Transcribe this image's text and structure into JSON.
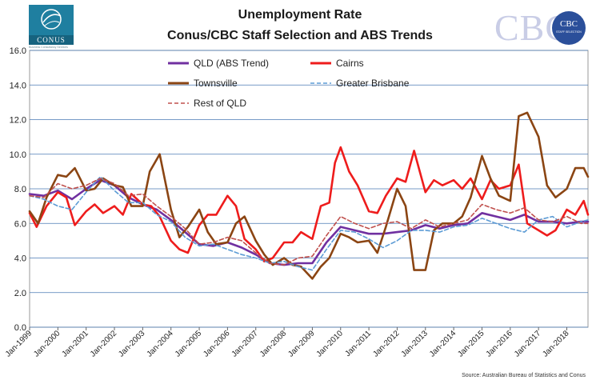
{
  "chart_data": {
    "type": "line",
    "title": "Unemployment Rate",
    "subtitle": "Conus/CBC Staff Selection and ABS Trends",
    "xlabel": "",
    "ylabel": "",
    "ylim": [
      0,
      16
    ],
    "yticks": [
      "0.0",
      "2.0",
      "4.0",
      "6.0",
      "8.0",
      "10.0",
      "12.0",
      "14.0",
      "16.0"
    ],
    "xticks": [
      "Jan-1999",
      "Jan-2000",
      "Jan-2001",
      "Jan-2002",
      "Jan-2003",
      "Jan-2004",
      "Jan-2005",
      "Jan-2006",
      "Jan-2007",
      "Jan-2008",
      "Jan-2009",
      "Jan-2010",
      "Jan-2011",
      "Jan-2012",
      "Jan-2013",
      "Jan-2014",
      "Jan-2015",
      "Jan-2016",
      "Jan-2017",
      "Jan-2018"
    ],
    "xlim": [
      1999.0,
      2018.75
    ],
    "grid": true,
    "legend_position": "top",
    "source": "Source: Australian Bureau of Statistics and Conus",
    "series": [
      {
        "name": "QLD (ABS Trend)",
        "color": "#7030a0",
        "dash": "solid",
        "x": [
          1999.0,
          1999.5,
          2000.0,
          2000.5,
          2001.0,
          2001.5,
          2002.0,
          2002.5,
          2003.0,
          2003.5,
          2004.0,
          2004.5,
          2005.0,
          2005.5,
          2006.0,
          2006.5,
          2007.0,
          2007.5,
          2008.0,
          2008.5,
          2009.0,
          2009.5,
          2010.0,
          2010.5,
          2011.0,
          2011.5,
          2012.0,
          2012.5,
          2013.0,
          2013.5,
          2014.0,
          2014.5,
          2015.0,
          2015.5,
          2016.0,
          2016.5,
          2017.0,
          2017.5,
          2018.0,
          2018.5,
          2018.75
        ],
        "y": [
          7.7,
          7.6,
          7.9,
          7.4,
          8.0,
          8.5,
          8.2,
          7.5,
          7.1,
          6.8,
          6.2,
          5.5,
          4.8,
          4.7,
          4.9,
          4.6,
          4.2,
          3.7,
          3.6,
          3.7,
          3.7,
          4.9,
          5.8,
          5.6,
          5.4,
          5.4,
          5.5,
          5.6,
          5.9,
          5.7,
          5.9,
          6.0,
          6.6,
          6.4,
          6.2,
          6.5,
          6.1,
          6.1,
          6.0,
          6.1,
          6.1
        ]
      },
      {
        "name": "Cairns",
        "color": "#ee1c1c",
        "dash": "solid",
        "x": [
          1999.0,
          1999.25,
          1999.6,
          2000.0,
          2000.3,
          2000.6,
          2001.0,
          2001.3,
          2001.6,
          2002.0,
          2002.3,
          2002.6,
          2003.0,
          2003.3,
          2003.6,
          2004.0,
          2004.3,
          2004.6,
          2005.0,
          2005.3,
          2005.6,
          2006.0,
          2006.3,
          2006.6,
          2007.0,
          2007.3,
          2007.6,
          2008.0,
          2008.3,
          2008.6,
          2009.0,
          2009.3,
          2009.6,
          2009.8,
          2010.0,
          2010.3,
          2010.6,
          2011.0,
          2011.3,
          2011.6,
          2012.0,
          2012.3,
          2012.6,
          2013.0,
          2013.3,
          2013.6,
          2014.0,
          2014.3,
          2014.6,
          2015.0,
          2015.3,
          2015.6,
          2016.0,
          2016.3,
          2016.6,
          2017.0,
          2017.3,
          2017.6,
          2018.0,
          2018.3,
          2018.6,
          2018.75
        ],
        "y": [
          6.6,
          5.8,
          7.0,
          7.8,
          7.5,
          5.9,
          6.7,
          7.1,
          6.6,
          7.0,
          6.5,
          7.7,
          7.1,
          7.0,
          6.4,
          5.0,
          4.5,
          4.3,
          5.9,
          6.5,
          6.5,
          7.6,
          7.0,
          5.1,
          4.5,
          3.8,
          4.0,
          4.9,
          4.9,
          5.5,
          5.1,
          7.0,
          7.2,
          9.5,
          10.4,
          9.0,
          8.2,
          6.7,
          6.6,
          7.6,
          8.6,
          8.4,
          10.2,
          7.8,
          8.5,
          8.2,
          8.5,
          8.0,
          8.6,
          7.4,
          8.5,
          8.0,
          8.2,
          9.4,
          6.0,
          5.6,
          5.3,
          5.6,
          6.8,
          6.5,
          7.3,
          6.5
        ]
      },
      {
        "name": "Townsville",
        "color": "#8b4513",
        "dash": "solid",
        "x": [
          1999.0,
          1999.3,
          1999.6,
          2000.0,
          2000.3,
          2000.6,
          2001.0,
          2001.3,
          2001.6,
          2002.0,
          2002.3,
          2002.6,
          2003.0,
          2003.25,
          2003.6,
          2004.0,
          2004.3,
          2004.6,
          2005.0,
          2005.3,
          2005.6,
          2006.0,
          2006.3,
          2006.6,
          2007.0,
          2007.3,
          2007.6,
          2008.0,
          2008.3,
          2008.6,
          2009.0,
          2009.3,
          2009.6,
          2010.0,
          2010.3,
          2010.6,
          2011.0,
          2011.3,
          2011.6,
          2012.0,
          2012.3,
          2012.6,
          2013.0,
          2013.3,
          2013.6,
          2014.0,
          2014.3,
          2014.6,
          2015.0,
          2015.3,
          2015.6,
          2016.0,
          2016.3,
          2016.6,
          2017.0,
          2017.3,
          2017.6,
          2018.0,
          2018.3,
          2018.6,
          2018.75
        ],
        "y": [
          6.7,
          6.0,
          7.5,
          8.8,
          8.7,
          9.2,
          7.9,
          8.0,
          8.6,
          8.2,
          8.1,
          7.0,
          7.0,
          9.0,
          10.0,
          6.8,
          5.2,
          5.8,
          6.8,
          5.5,
          4.8,
          4.9,
          6.0,
          6.4,
          5.0,
          4.2,
          3.6,
          4.0,
          3.6,
          3.5,
          2.8,
          3.5,
          4.0,
          5.4,
          5.2,
          4.9,
          5.0,
          4.3,
          5.8,
          8.0,
          7.0,
          3.3,
          3.3,
          5.6,
          6.0,
          6.0,
          6.4,
          7.5,
          9.9,
          8.6,
          7.6,
          7.3,
          12.2,
          12.4,
          11.0,
          8.2,
          7.5,
          8.0,
          9.2,
          9.2,
          8.7
        ]
      },
      {
        "name": "Greater Brisbane",
        "color": "#5b9bd5",
        "dash": "dashed",
        "x": [
          1999.0,
          1999.5,
          2000.0,
          2000.5,
          2001.0,
          2001.5,
          2002.0,
          2002.5,
          2003.0,
          2003.5,
          2004.0,
          2004.5,
          2005.0,
          2005.5,
          2006.0,
          2006.5,
          2007.0,
          2007.5,
          2008.0,
          2008.5,
          2009.0,
          2009.5,
          2010.0,
          2010.5,
          2011.0,
          2011.5,
          2012.0,
          2012.5,
          2013.0,
          2013.5,
          2014.0,
          2014.5,
          2015.0,
          2015.5,
          2016.0,
          2016.5,
          2017.0,
          2017.5,
          2018.0,
          2018.5,
          2018.75
        ],
        "y": [
          7.6,
          7.4,
          7.0,
          6.8,
          7.8,
          8.7,
          7.9,
          7.2,
          7.2,
          6.5,
          6.1,
          5.2,
          4.7,
          4.8,
          4.5,
          4.2,
          4.0,
          3.7,
          3.8,
          3.5,
          3.3,
          4.5,
          5.6,
          5.5,
          5.1,
          4.6,
          5.0,
          5.6,
          5.6,
          5.5,
          5.8,
          5.9,
          6.3,
          6.0,
          5.7,
          5.5,
          6.2,
          6.4,
          5.8,
          6.1,
          6.2
        ]
      },
      {
        "name": "Rest of QLD",
        "color": "#c0504d",
        "dash": "dashed",
        "x": [
          1999.0,
          1999.5,
          2000.0,
          2000.5,
          2001.0,
          2001.5,
          2002.0,
          2002.5,
          2003.0,
          2003.5,
          2004.0,
          2004.5,
          2005.0,
          2005.5,
          2006.0,
          2006.5,
          2007.0,
          2007.5,
          2008.0,
          2008.5,
          2009.0,
          2009.5,
          2010.0,
          2010.5,
          2011.0,
          2011.5,
          2012.0,
          2012.5,
          2013.0,
          2013.5,
          2014.0,
          2014.5,
          2015.0,
          2015.5,
          2016.0,
          2016.5,
          2017.0,
          2017.5,
          2018.0,
          2018.5,
          2018.75
        ],
        "y": [
          7.6,
          7.5,
          8.3,
          8.0,
          8.2,
          8.6,
          8.3,
          7.6,
          7.7,
          7.0,
          6.4,
          5.7,
          4.8,
          4.9,
          5.2,
          5.0,
          4.3,
          3.7,
          3.6,
          4.0,
          4.1,
          5.3,
          6.4,
          6.0,
          5.7,
          6.0,
          6.1,
          5.7,
          6.2,
          5.8,
          6.0,
          6.2,
          7.1,
          6.8,
          6.6,
          6.9,
          6.2,
          6.1,
          6.4,
          6.0,
          6.0
        ]
      }
    ]
  }
}
